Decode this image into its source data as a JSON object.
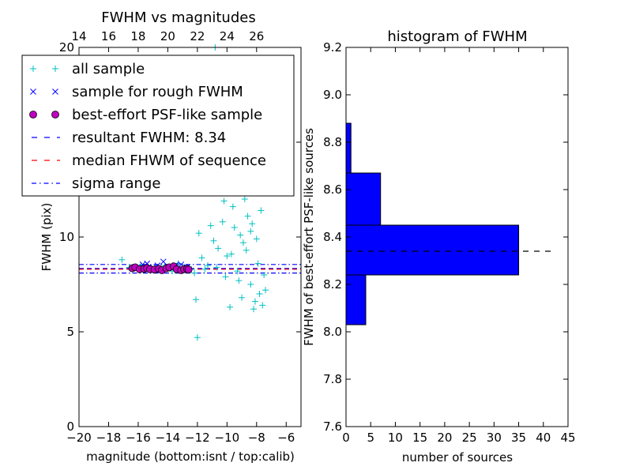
{
  "chart_data": [
    {
      "type": "scatter",
      "title": "FWHM vs magnitudes",
      "xlabel": "magnitude (bottom:isnt / top:calib)",
      "ylabel": "FWHM (pix)",
      "xlim": [
        -20,
        -5
      ],
      "ylim": [
        0,
        20
      ],
      "x_ticks": [
        -20,
        -18,
        -16,
        -14,
        -12,
        -10,
        -8,
        -6
      ],
      "x_tick_labels": [
        "−20",
        "−18",
        "−16",
        "−14",
        "−12",
        "−10",
        "−8",
        "−6"
      ],
      "y_ticks": [
        0,
        5,
        10,
        15,
        20
      ],
      "y_tick_labels": [
        "0",
        "5",
        "10",
        "15",
        "20"
      ],
      "top_axis": {
        "ticks": [
          14,
          16,
          18,
          20,
          22,
          24,
          26
        ],
        "tick_labels": [
          "14",
          "16",
          "18",
          "20",
          "22",
          "24",
          "26"
        ],
        "offset_from_bottom": 34
      },
      "legend": {
        "placement": "upper-left",
        "entries": [
          {
            "label": "all sample",
            "marker": "plus",
            "color": "#00bfbf"
          },
          {
            "label": "sample for rough FWHM",
            "marker": "x",
            "color": "#0000ff"
          },
          {
            "label": "best-effort PSF-like sample",
            "marker": "circle",
            "color": "#bf00bf"
          },
          {
            "label": "resultant FWHM: 8.34",
            "marker": "dashed-line",
            "color": "#0000ff"
          },
          {
            "label": "median FHWM of sequence",
            "marker": "dashed-line",
            "color": "#ff0000"
          },
          {
            "label": "sigma range",
            "marker": "dashdot-line",
            "color": "#0000ff"
          }
        ]
      },
      "reference_lines": {
        "resultant_fwhm": 8.34,
        "median_sequence": 8.3,
        "sigma_range": [
          8.1,
          8.55
        ]
      },
      "series": [
        {
          "name": "all sample",
          "color": "#00bfbf",
          "marker": "plus",
          "points": [
            [
              -17.1,
              8.8
            ],
            [
              -16.6,
              8.4
            ],
            [
              -15.8,
              8.5
            ],
            [
              -15.3,
              8.3
            ],
            [
              -14.8,
              8.4
            ],
            [
              -14.2,
              8.5
            ],
            [
              -13.7,
              8.2
            ],
            [
              -13.3,
              8.6
            ],
            [
              -12.9,
              8.4
            ],
            [
              -12.4,
              8.3
            ],
            [
              -12.2,
              8.1
            ],
            [
              -12.1,
              6.7
            ],
            [
              -12.0,
              4.7
            ],
            [
              -11.9,
              10.2
            ],
            [
              -11.7,
              8.9
            ],
            [
              -11.5,
              8.3
            ],
            [
              -11.3,
              8.5
            ],
            [
              -11.1,
              10.6
            ],
            [
              -10.9,
              9.8
            ],
            [
              -10.7,
              8.4
            ],
            [
              -10.6,
              9.4
            ],
            [
              -10.3,
              10.8
            ],
            [
              -10.2,
              11.9
            ],
            [
              -10.1,
              7.9
            ],
            [
              -9.9,
              12.6
            ],
            [
              -9.7,
              9.1
            ],
            [
              -9.6,
              11.6
            ],
            [
              -9.4,
              14.7
            ],
            [
              -9.3,
              8.2
            ],
            [
              -9.2,
              13.6
            ],
            [
              -9.1,
              10.1
            ],
            [
              -9.0,
              6.8
            ],
            [
              -8.9,
              15.4
            ],
            [
              -8.8,
              12.0
            ],
            [
              -8.7,
              9.3
            ],
            [
              -8.6,
              11.1
            ],
            [
              -8.5,
              14.0
            ],
            [
              -8.4,
              7.5
            ],
            [
              -8.3,
              10.7
            ],
            [
              -8.2,
              12.8
            ],
            [
              -8.1,
              6.6
            ],
            [
              -8.0,
              9.9
            ],
            [
              -7.9,
              8.6
            ],
            [
              -7.8,
              7.0
            ],
            [
              -7.7,
              11.4
            ],
            [
              -7.6,
              6.4
            ],
            [
              -7.5,
              8.0
            ],
            [
              -7.4,
              7.2
            ],
            [
              -8.8,
              16.5
            ],
            [
              -8.5,
              17.3
            ],
            [
              -11.3,
              19.3
            ],
            [
              -10.8,
              20.0
            ],
            [
              -9.8,
              6.3
            ],
            [
              -8.2,
              6.2
            ],
            [
              -8.6,
              13.2
            ],
            [
              -9.5,
              10.5
            ],
            [
              -10.0,
              9.0
            ],
            [
              -8.9,
              9.7
            ],
            [
              -8.4,
              10.3
            ],
            [
              -9.2,
              7.7
            ]
          ]
        },
        {
          "name": "sample for rough FWHM",
          "color": "#0000ff",
          "marker": "x",
          "points": [
            [
              -16.3,
              8.4
            ],
            [
              -15.7,
              8.55
            ],
            [
              -15.4,
              8.6
            ],
            [
              -15.0,
              8.4
            ],
            [
              -14.7,
              8.5
            ],
            [
              -14.3,
              8.7
            ],
            [
              -13.8,
              8.4
            ],
            [
              -13.5,
              8.5
            ],
            [
              -13.1,
              8.55
            ],
            [
              -12.7,
              8.4
            ]
          ]
        },
        {
          "name": "best-effort PSF-like sample",
          "color": "#bf00bf",
          "marker": "circle",
          "points": [
            [
              -16.4,
              8.35
            ],
            [
              -16.2,
              8.4
            ],
            [
              -15.9,
              8.3
            ],
            [
              -15.6,
              8.32
            ],
            [
              -15.4,
              8.36
            ],
            [
              -15.2,
              8.3
            ],
            [
              -14.9,
              8.28
            ],
            [
              -14.6,
              8.32
            ],
            [
              -14.4,
              8.25
            ],
            [
              -14.1,
              8.35
            ],
            [
              -13.9,
              8.4
            ],
            [
              -13.6,
              8.45
            ],
            [
              -13.4,
              8.3
            ],
            [
              -13.1,
              8.25
            ],
            [
              -12.9,
              8.3
            ],
            [
              -12.7,
              8.32
            ],
            [
              -12.6,
              8.28
            ]
          ]
        }
      ]
    },
    {
      "type": "bar",
      "orientation": "horizontal",
      "title": "histogram of FWHM",
      "xlabel": "number of sources",
      "ylabel": "FWHM of best-effort PSF-like sources",
      "xlim": [
        0,
        45
      ],
      "ylim": [
        7.6,
        9.2
      ],
      "x_ticks": [
        0,
        5,
        10,
        15,
        20,
        25,
        30,
        35,
        40,
        45
      ],
      "x_tick_labels": [
        "0",
        "5",
        "10",
        "15",
        "20",
        "25",
        "30",
        "35",
        "40",
        "45"
      ],
      "y_ticks": [
        7.6,
        7.8,
        8.0,
        8.2,
        8.4,
        8.6,
        8.8,
        9.0,
        9.2
      ],
      "y_tick_labels": [
        "7.6",
        "7.8",
        "8.0",
        "8.2",
        "8.4",
        "8.6",
        "8.8",
        "9.0",
        "9.2"
      ],
      "bar_color": "#0000ff",
      "bins": [
        {
          "from": 8.03,
          "to": 8.24,
          "count": 4
        },
        {
          "from": 8.24,
          "to": 8.45,
          "count": 35
        },
        {
          "from": 8.45,
          "to": 8.67,
          "count": 7
        },
        {
          "from": 8.67,
          "to": 8.88,
          "count": 1
        }
      ],
      "reference_line": {
        "y": 8.34,
        "x_to": 41.5,
        "style": "dashed",
        "color": "#000000"
      }
    }
  ]
}
